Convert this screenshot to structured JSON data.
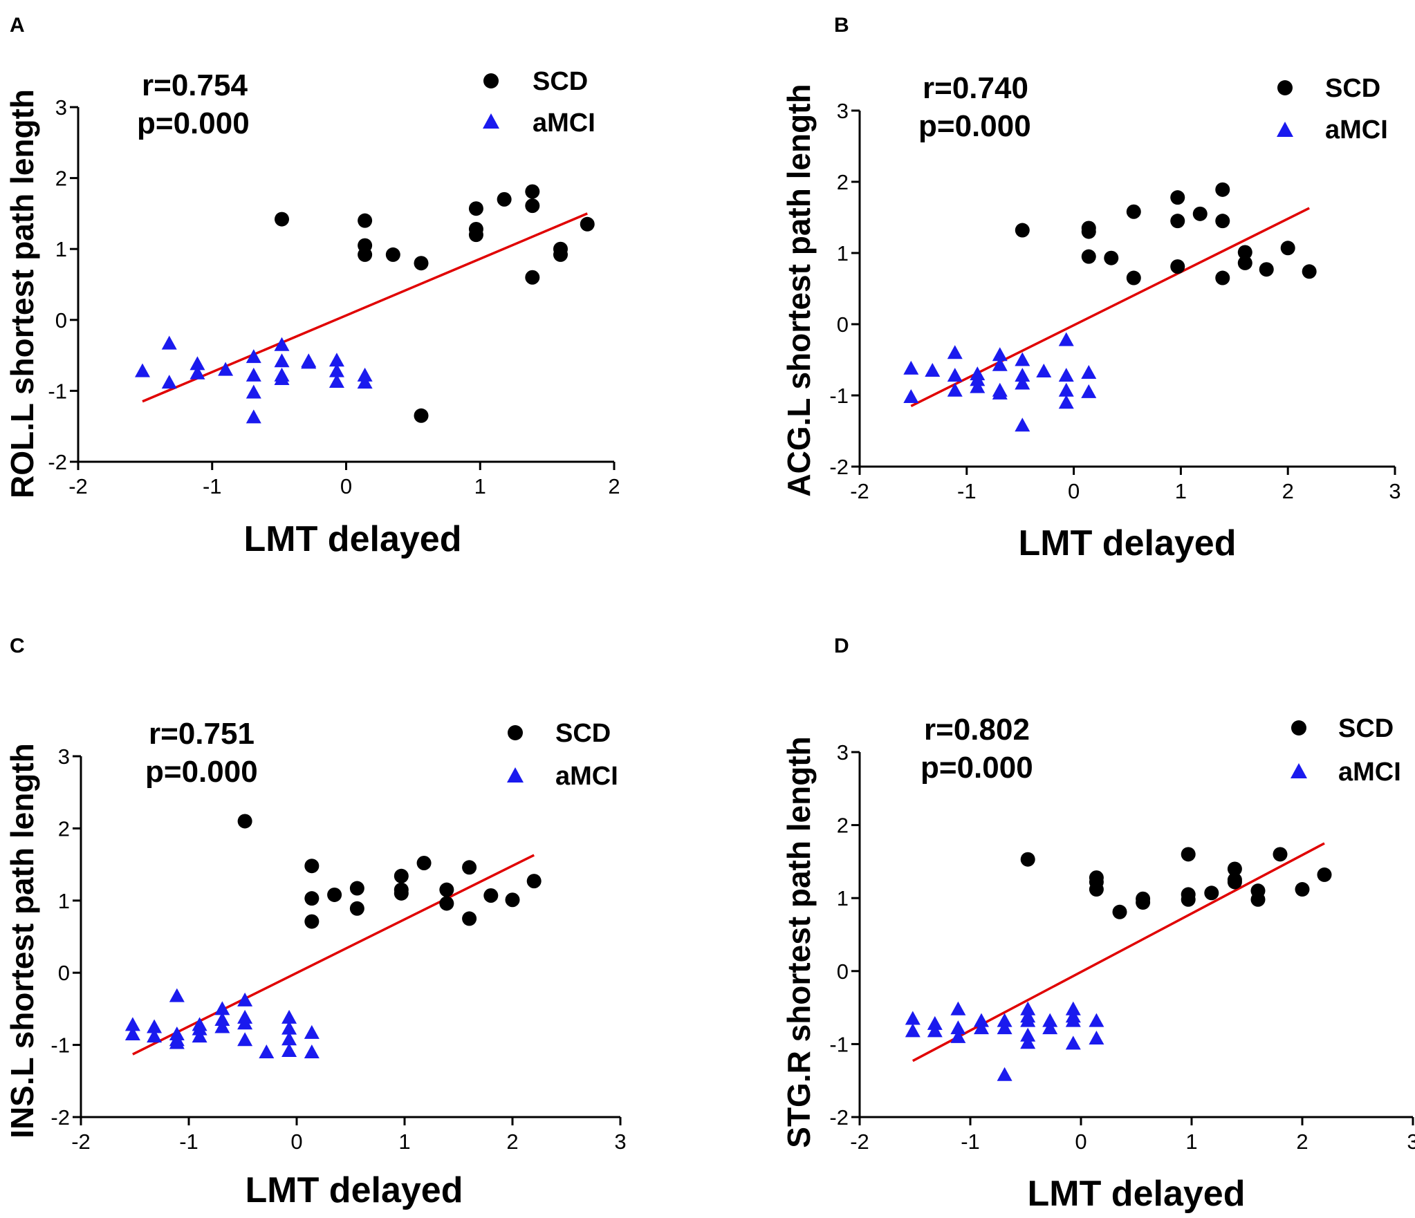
{
  "figure": {
    "panels": [
      "A",
      "B",
      "C",
      "D"
    ]
  },
  "legend": {
    "scd": "SCD",
    "amci": "aMCI"
  },
  "colors": {
    "scd": "#000000",
    "amci": "#1a1aee",
    "fit": "#e00000"
  },
  "chart_data": [
    {
      "panel": "A",
      "type": "scatter",
      "xlabel": "LMT delayed",
      "ylabel": "ROL.L shortest path length",
      "stat_r": "r=0.754",
      "stat_p": "p=0.000",
      "xlim": [
        -2,
        2
      ],
      "ylim": [
        -2,
        3
      ],
      "xticks": [
        -2,
        -1,
        0,
        1,
        2
      ],
      "yticks": [
        -2,
        -1,
        0,
        1,
        2,
        3
      ],
      "fit": [
        [
          -1.52,
          -1.15
        ],
        [
          1.8,
          1.5
        ]
      ],
      "series": [
        {
          "name": "SCD",
          "points": [
            [
              -0.48,
              1.42
            ],
            [
              0.14,
              1.4
            ],
            [
              0.14,
              1.05
            ],
            [
              0.14,
              0.92
            ],
            [
              0.35,
              0.92
            ],
            [
              0.56,
              0.8
            ],
            [
              0.97,
              1.57
            ],
            [
              0.97,
              1.28
            ],
            [
              0.97,
              1.2
            ],
            [
              1.18,
              1.7
            ],
            [
              1.39,
              1.81
            ],
            [
              1.39,
              1.61
            ],
            [
              1.39,
              0.6
            ],
            [
              1.6,
              1.0
            ],
            [
              1.6,
              0.92
            ],
            [
              1.8,
              1.35
            ],
            [
              0.56,
              -1.35
            ]
          ]
        },
        {
          "name": "aMCI",
          "points": [
            [
              -1.52,
              -0.72
            ],
            [
              -1.32,
              -0.33
            ],
            [
              -1.32,
              -0.88
            ],
            [
              -1.11,
              -0.62
            ],
            [
              -1.11,
              -0.75
            ],
            [
              -0.9,
              -0.7
            ],
            [
              -0.69,
              -0.52
            ],
            [
              -0.69,
              -0.78
            ],
            [
              -0.69,
              -1.02
            ],
            [
              -0.69,
              -1.37
            ],
            [
              -0.48,
              -0.35
            ],
            [
              -0.48,
              -0.58
            ],
            [
              -0.48,
              -0.78
            ],
            [
              -0.48,
              -0.83
            ],
            [
              -0.28,
              -0.58
            ],
            [
              -0.28,
              -0.6
            ],
            [
              -0.07,
              -0.57
            ],
            [
              -0.07,
              -0.72
            ],
            [
              -0.07,
              -0.87
            ],
            [
              0.14,
              -0.78
            ],
            [
              0.14,
              -0.88
            ]
          ]
        }
      ]
    },
    {
      "panel": "B",
      "type": "scatter",
      "xlabel": "LMT delayed",
      "ylabel": "ACG.L shortest path length",
      "stat_r": "r=0.740",
      "stat_p": "p=0.000",
      "xlim": [
        -2,
        3
      ],
      "ylim": [
        -2,
        3
      ],
      "xticks": [
        -2,
        -1,
        0,
        1,
        2,
        3
      ],
      "yticks": [
        -2,
        -1,
        0,
        1,
        2,
        3
      ],
      "fit": [
        [
          -1.52,
          -1.15
        ],
        [
          2.2,
          1.63
        ]
      ],
      "series": [
        {
          "name": "SCD",
          "points": [
            [
              -0.48,
              1.32
            ],
            [
              0.14,
              1.35
            ],
            [
              0.14,
              1.3
            ],
            [
              0.14,
              0.95
            ],
            [
              0.35,
              0.93
            ],
            [
              0.56,
              1.58
            ],
            [
              0.56,
              0.65
            ],
            [
              0.97,
              1.78
            ],
            [
              0.97,
              1.45
            ],
            [
              0.97,
              0.81
            ],
            [
              1.18,
              1.55
            ],
            [
              1.39,
              1.89
            ],
            [
              1.39,
              1.45
            ],
            [
              1.39,
              0.65
            ],
            [
              1.6,
              1.01
            ],
            [
              1.6,
              0.86
            ],
            [
              1.8,
              0.77
            ],
            [
              2.0,
              1.07
            ],
            [
              2.2,
              0.74
            ]
          ]
        },
        {
          "name": "aMCI",
          "points": [
            [
              -1.52,
              -0.62
            ],
            [
              -1.52,
              -1.02
            ],
            [
              -1.32,
              -0.65
            ],
            [
              -1.11,
              -0.4
            ],
            [
              -1.11,
              -0.72
            ],
            [
              -1.11,
              -0.93
            ],
            [
              -0.9,
              -0.7
            ],
            [
              -0.9,
              -0.78
            ],
            [
              -0.9,
              -0.88
            ],
            [
              -0.69,
              -0.43
            ],
            [
              -0.69,
              -0.57
            ],
            [
              -0.69,
              -0.93
            ],
            [
              -0.69,
              -0.97
            ],
            [
              -0.48,
              -0.5
            ],
            [
              -0.48,
              -0.72
            ],
            [
              -0.48,
              -0.83
            ],
            [
              -0.48,
              -1.42
            ],
            [
              -0.28,
              -0.66
            ],
            [
              -0.07,
              -0.22
            ],
            [
              -0.07,
              -0.72
            ],
            [
              -0.07,
              -0.93
            ],
            [
              -0.07,
              -1.1
            ],
            [
              0.14,
              -0.68
            ],
            [
              0.14,
              -0.95
            ]
          ]
        }
      ]
    },
    {
      "panel": "C",
      "type": "scatter",
      "xlabel": "LMT delayed",
      "ylabel": "INS.L shortest path length",
      "stat_r": "r=0.751",
      "stat_p": "p=0.000",
      "xlim": [
        -2,
        3
      ],
      "ylim": [
        -2,
        3
      ],
      "xticks": [
        -2,
        -1,
        0,
        1,
        2,
        3
      ],
      "yticks": [
        -2,
        -1,
        0,
        1,
        2,
        3
      ],
      "fit": [
        [
          -1.52,
          -1.13
        ],
        [
          2.2,
          1.63
        ]
      ],
      "series": [
        {
          "name": "SCD",
          "points": [
            [
              -0.48,
              2.1
            ],
            [
              0.14,
              1.48
            ],
            [
              0.14,
              1.03
            ],
            [
              0.14,
              0.71
            ],
            [
              0.35,
              1.08
            ],
            [
              0.56,
              1.17
            ],
            [
              0.56,
              0.89
            ],
            [
              0.97,
              1.34
            ],
            [
              0.97,
              1.15
            ],
            [
              0.97,
              1.1
            ],
            [
              1.18,
              1.52
            ],
            [
              1.39,
              1.15
            ],
            [
              1.39,
              0.96
            ],
            [
              1.6,
              1.46
            ],
            [
              1.6,
              0.75
            ],
            [
              1.8,
              1.07
            ],
            [
              2.0,
              1.01
            ],
            [
              2.2,
              1.27
            ]
          ]
        },
        {
          "name": "aMCI",
          "points": [
            [
              -1.52,
              -0.72
            ],
            [
              -1.52,
              -0.85
            ],
            [
              -1.32,
              -0.75
            ],
            [
              -1.32,
              -0.88
            ],
            [
              -1.11,
              -0.32
            ],
            [
              -1.11,
              -0.85
            ],
            [
              -1.11,
              -0.93
            ],
            [
              -1.11,
              -0.97
            ],
            [
              -0.9,
              -0.72
            ],
            [
              -0.9,
              -0.78
            ],
            [
              -0.9,
              -0.88
            ],
            [
              -0.69,
              -0.5
            ],
            [
              -0.69,
              -0.65
            ],
            [
              -0.69,
              -0.75
            ],
            [
              -0.48,
              -0.38
            ],
            [
              -0.48,
              -0.62
            ],
            [
              -0.48,
              -0.7
            ],
            [
              -0.48,
              -0.93
            ],
            [
              -0.28,
              -1.1
            ],
            [
              -0.07,
              -0.62
            ],
            [
              -0.07,
              -0.77
            ],
            [
              -0.07,
              -0.92
            ],
            [
              -0.07,
              -1.08
            ],
            [
              0.14,
              -0.83
            ],
            [
              0.14,
              -1.1
            ]
          ]
        }
      ]
    },
    {
      "panel": "D",
      "type": "scatter",
      "xlabel": "LMT delayed",
      "ylabel": "STG.R shortest path length",
      "stat_r": "r=0.802",
      "stat_p": "p=0.000",
      "xlim": [
        -2,
        3
      ],
      "ylim": [
        -2,
        3
      ],
      "xticks": [
        -2,
        -1,
        0,
        1,
        2,
        3
      ],
      "yticks": [
        -2,
        -1,
        0,
        1,
        2,
        3
      ],
      "fit": [
        [
          -1.52,
          -1.23
        ],
        [
          2.2,
          1.75
        ]
      ],
      "series": [
        {
          "name": "SCD",
          "points": [
            [
              -0.48,
              1.53
            ],
            [
              0.14,
              1.28
            ],
            [
              0.14,
              1.22
            ],
            [
              0.14,
              1.12
            ],
            [
              0.35,
              0.81
            ],
            [
              0.56,
              0.99
            ],
            [
              0.56,
              0.94
            ],
            [
              0.97,
              1.6
            ],
            [
              0.97,
              1.05
            ],
            [
              0.97,
              0.98
            ],
            [
              1.18,
              1.07
            ],
            [
              1.39,
              1.4
            ],
            [
              1.39,
              1.25
            ],
            [
              1.39,
              1.22
            ],
            [
              1.6,
              1.1
            ],
            [
              1.6,
              0.98
            ],
            [
              1.8,
              1.6
            ],
            [
              2.0,
              1.12
            ],
            [
              2.2,
              1.32
            ]
          ]
        },
        {
          "name": "aMCI",
          "points": [
            [
              -1.52,
              -0.65
            ],
            [
              -1.52,
              -0.82
            ],
            [
              -1.32,
              -0.72
            ],
            [
              -1.32,
              -0.82
            ],
            [
              -1.11,
              -0.52
            ],
            [
              -1.11,
              -0.78
            ],
            [
              -1.11,
              -0.9
            ],
            [
              -0.9,
              -0.68
            ],
            [
              -0.9,
              -0.78
            ],
            [
              -0.69,
              -0.68
            ],
            [
              -0.69,
              -0.78
            ],
            [
              -0.69,
              -1.42
            ],
            [
              -0.48,
              -0.52
            ],
            [
              -0.48,
              -0.62
            ],
            [
              -0.48,
              -0.68
            ],
            [
              -0.48,
              -0.88
            ],
            [
              -0.48,
              -0.98
            ],
            [
              -0.28,
              -0.68
            ],
            [
              -0.28,
              -0.78
            ],
            [
              -0.07,
              -0.52
            ],
            [
              -0.07,
              -0.62
            ],
            [
              -0.07,
              -0.68
            ],
            [
              -0.07,
              -0.99
            ],
            [
              0.14,
              -0.68
            ],
            [
              0.14,
              -0.92
            ]
          ]
        }
      ]
    }
  ]
}
